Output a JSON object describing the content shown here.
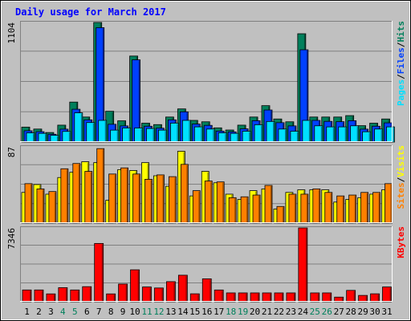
{
  "chart_data": {
    "type": "bar",
    "title": "Daily usage for March 2017",
    "categories": [
      "1",
      "2",
      "3",
      "4",
      "5",
      "6",
      "7",
      "8",
      "9",
      "10",
      "11",
      "12",
      "13",
      "14",
      "15",
      "16",
      "17",
      "18",
      "19",
      "20",
      "21",
      "22",
      "23",
      "24",
      "25",
      "26",
      "27",
      "28",
      "29",
      "30",
      "31"
    ],
    "weekend_categories": [
      "4",
      "5",
      "11",
      "12",
      "18",
      "19",
      "25",
      "26"
    ],
    "colors": {
      "hits": "#00805c",
      "files": "#0040ff",
      "pages": "#00e0ff",
      "visits": "#ffff00",
      "sites": "#ff8000",
      "kbytes": "#ff0000",
      "weekend_label": "#00805c",
      "title": "#0000ff",
      "background": "#c0c0c0"
    },
    "panels": [
      {
        "max_label": "1104",
        "ymax": 1104,
        "legend": [
          {
            "key": "pages",
            "text": "Pages"
          },
          {
            "key": "files",
            "text": "Files"
          },
          {
            "key": "hits",
            "text": "Hits"
          }
        ],
        "series": [
          {
            "name": "Hits",
            "key": "hits",
            "values": [
              138,
              120,
              88,
              156,
              369,
              231,
              1104,
              284,
              196,
              794,
              174,
              161,
              231,
              306,
              200,
              187,
              131,
              111,
              156,
              231,
              336,
              213,
              187,
              1000,
              231,
              231,
              231,
              244,
              151,
              174,
              213
            ]
          },
          {
            "name": "Files",
            "key": "files",
            "values": [
              104,
              96,
              72,
              119,
              303,
              205,
              1056,
              164,
              149,
              759,
              146,
              128,
              205,
              279,
              166,
              154,
              101,
              94,
              122,
              197,
              296,
              179,
              149,
              852,
              200,
              191,
              188,
              197,
              119,
              146,
              177
            ]
          },
          {
            "name": "Pages",
            "key": "pages",
            "values": [
              85,
              80,
              62,
              98,
              270,
              180,
              200,
              110,
              130,
              130,
              125,
              110,
              175,
              200,
              140,
              120,
              85,
              80,
              100,
              160,
              190,
              120,
              100,
              200,
              150,
              140,
              140,
              150,
              95,
              120,
              140
            ]
          }
        ]
      },
      {
        "max_label": "87",
        "ymax": 87,
        "legend": [
          {
            "key": "sites",
            "text": "Sites"
          },
          {
            "key": "visits",
            "text": "Visits"
          }
        ],
        "series": [
          {
            "name": "Visits",
            "key": "visits",
            "values": [
              35,
              44,
              33,
              52,
              58,
              70,
              69,
              26,
              61,
              60,
              69,
              54,
              42,
              82,
              31,
              59,
              46,
              33,
              27,
              37,
              39,
              16,
              35,
              38,
              38,
              38,
              24,
              27,
              29,
              33,
              38
            ]
          },
          {
            "name": "Sites",
            "key": "sites",
            "values": [
              45,
              39,
              36,
              62,
              68,
              59,
              85,
              56,
              63,
              56,
              50,
              55,
              53,
              67,
              37,
              48,
              47,
              29,
              30,
              32,
              43,
              19,
              33,
              33,
              39,
              35,
              31,
              32,
              35,
              35,
              45
            ]
          }
        ]
      },
      {
        "max_label": "7346",
        "ymax": 7346,
        "legend": [
          {
            "key": "kbytes",
            "text": "KBytes"
          }
        ],
        "series": [
          {
            "name": "KBytes",
            "key": "kbytes",
            "values": [
              1172,
              1172,
              781,
              1400,
              1172,
              1500,
              5800,
              780,
              1760,
              3180,
              1470,
              1370,
              2000,
              2640,
              790,
              2280,
              1170,
              880,
              880,
              880,
              880,
              880,
              880,
              7346,
              880,
              880,
              460,
              1130,
              630,
              790,
              1470
            ]
          }
        ]
      }
    ]
  }
}
